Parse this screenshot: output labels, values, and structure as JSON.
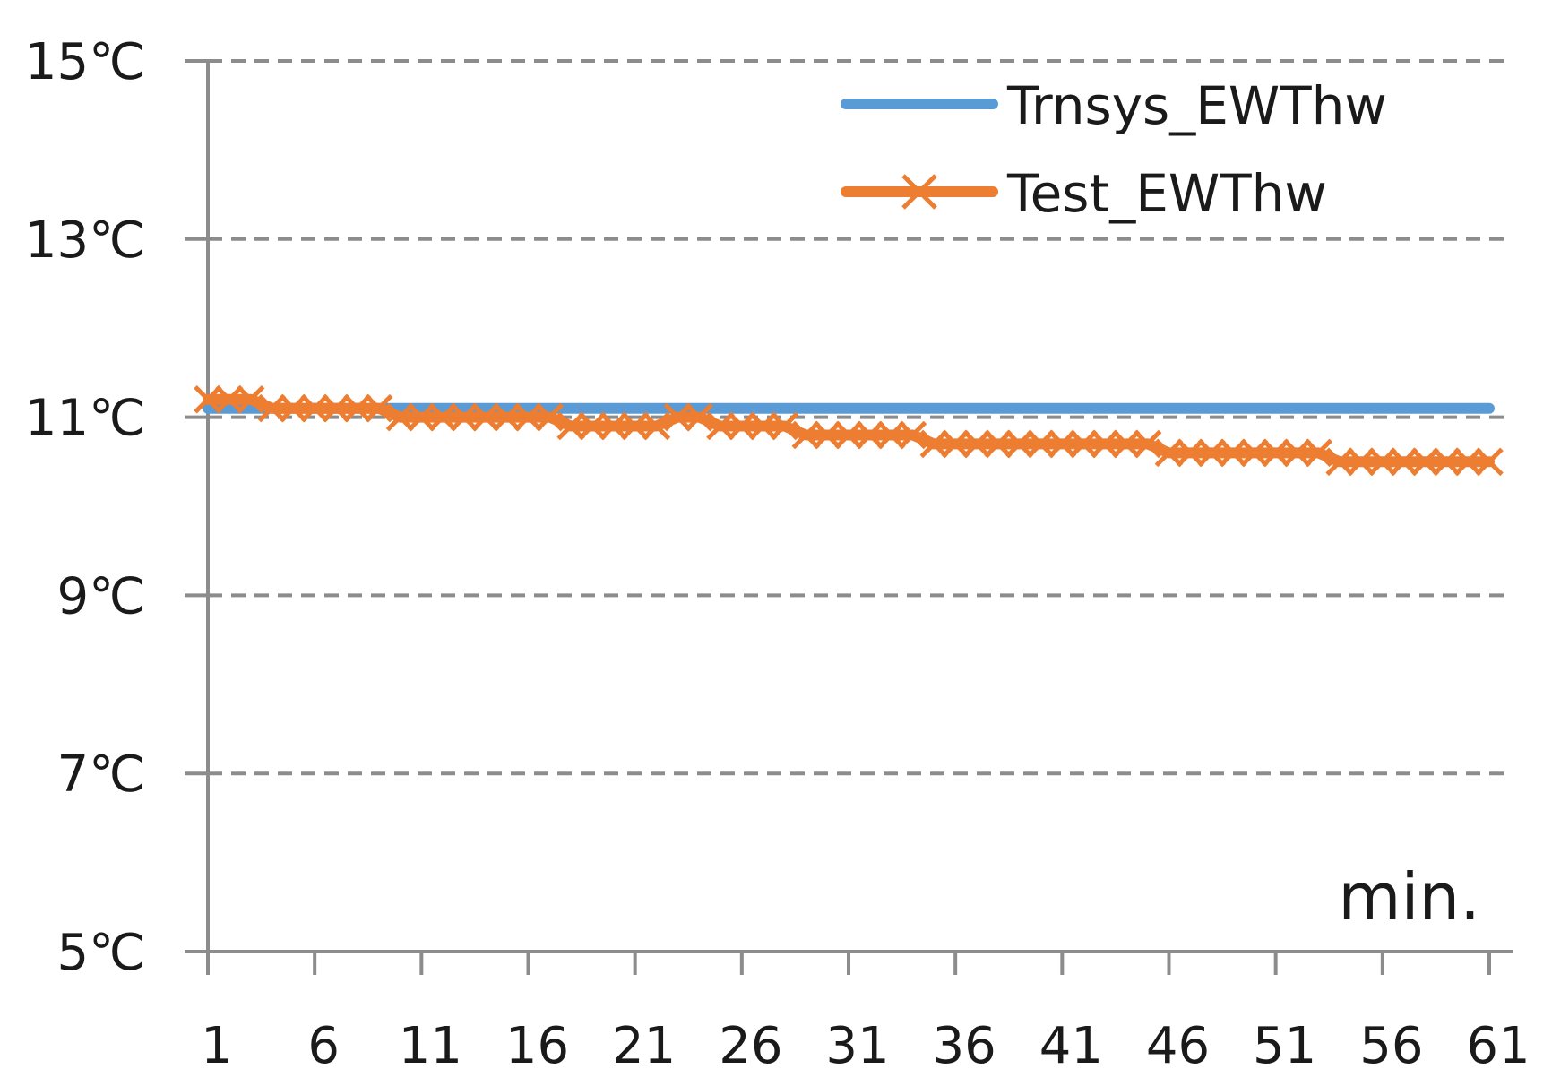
{
  "chart_data": {
    "type": "line",
    "x_unit_label": "min.",
    "y_ticks": [
      "5℃",
      "7℃",
      "9℃",
      "11℃",
      "13℃",
      "15℃"
    ],
    "y_tick_values": [
      5,
      7,
      9,
      11,
      13,
      15
    ],
    "x_ticks": [
      "1",
      "6",
      "11",
      "16",
      "21",
      "26",
      "31",
      "36",
      "41",
      "46",
      "51",
      "56",
      "61"
    ],
    "ylim": [
      5,
      15
    ],
    "xlim": [
      1,
      61
    ],
    "grid": "horizontal-dashed",
    "legend_position": "top-right",
    "x": [
      1,
      2,
      3,
      4,
      5,
      6,
      7,
      8,
      9,
      10,
      11,
      12,
      13,
      14,
      15,
      16,
      17,
      18,
      19,
      20,
      21,
      22,
      23,
      24,
      25,
      26,
      27,
      28,
      29,
      30,
      31,
      32,
      33,
      34,
      35,
      36,
      37,
      38,
      39,
      40,
      41,
      42,
      43,
      44,
      45,
      46,
      47,
      48,
      49,
      50,
      51,
      52,
      53,
      54,
      55,
      56,
      57,
      58,
      59,
      60,
      61
    ],
    "series": [
      {
        "name": "Trnsys_EWThw",
        "color": "#5b9bd5",
        "marker": "none",
        "values": [
          11.1,
          11.1,
          11.1,
          11.1,
          11.1,
          11.1,
          11.1,
          11.1,
          11.1,
          11.1,
          11.1,
          11.1,
          11.1,
          11.1,
          11.1,
          11.1,
          11.1,
          11.1,
          11.1,
          11.1,
          11.1,
          11.1,
          11.1,
          11.1,
          11.1,
          11.1,
          11.1,
          11.1,
          11.1,
          11.1,
          11.1,
          11.1,
          11.1,
          11.1,
          11.1,
          11.1,
          11.1,
          11.1,
          11.1,
          11.1,
          11.1,
          11.1,
          11.1,
          11.1,
          11.1,
          11.1,
          11.1,
          11.1,
          11.1,
          11.1,
          11.1,
          11.1,
          11.1,
          11.1,
          11.1,
          11.1,
          11.1,
          11.1,
          11.1,
          11.1,
          11.1
        ]
      },
      {
        "name": "Test_EWThw",
        "color": "#ed7d31",
        "marker": "x",
        "values": [
          11.2,
          11.2,
          11.2,
          11.1,
          11.1,
          11.1,
          11.1,
          11.1,
          11.1,
          11.0,
          11.0,
          11.0,
          11.0,
          11.0,
          11.0,
          11.0,
          11.0,
          10.9,
          10.9,
          10.9,
          10.9,
          10.9,
          11.0,
          11.0,
          10.9,
          10.9,
          10.9,
          10.9,
          10.8,
          10.8,
          10.8,
          10.8,
          10.8,
          10.8,
          10.7,
          10.7,
          10.7,
          10.7,
          10.7,
          10.7,
          10.7,
          10.7,
          10.7,
          10.7,
          10.7,
          10.6,
          10.6,
          10.6,
          10.6,
          10.6,
          10.6,
          10.6,
          10.6,
          10.5,
          10.5,
          10.5,
          10.5,
          10.5,
          10.5,
          10.5,
          10.5
        ]
      }
    ]
  }
}
